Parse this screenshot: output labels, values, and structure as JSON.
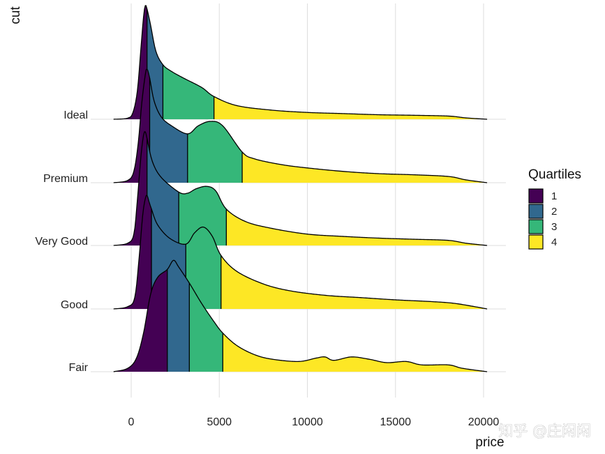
{
  "chart_data": {
    "type": "ridgeline",
    "title": "",
    "xlabel": "price",
    "ylabel": "cut",
    "xlim": [
      -1200,
      21500
    ],
    "x_ticks": [
      0,
      5000,
      10000,
      15000,
      20000
    ],
    "x_tick_labels": [
      "0",
      "5000",
      "10000",
      "15000",
      "20000"
    ],
    "grid": true,
    "categories": [
      "Fair",
      "Good",
      "Very Good",
      "Premium",
      "Ideal"
    ],
    "legend": {
      "title": "Quartiles",
      "position": "right",
      "entries": [
        {
          "label": "1",
          "color": "#440154"
        },
        {
          "label": "2",
          "color": "#31688E"
        },
        {
          "label": "3",
          "color": "#35B779"
        },
        {
          "label": "4",
          "color": "#FDE725"
        }
      ]
    },
    "series": [
      {
        "name": "Ideal",
        "quartile_breaks": [
          900,
          1800,
          4700
        ],
        "density": [
          [
            -1000,
            0
          ],
          [
            -200,
            0.01
          ],
          [
            100,
            0.06
          ],
          [
            350,
            0.25
          ],
          [
            550,
            0.62
          ],
          [
            700,
            0.9
          ],
          [
            800,
            1.0
          ],
          [
            900,
            0.97
          ],
          [
            1100,
            0.83
          ],
          [
            1400,
            0.6
          ],
          [
            1800,
            0.48
          ],
          [
            2300,
            0.42
          ],
          [
            3000,
            0.36
          ],
          [
            4000,
            0.28
          ],
          [
            4700,
            0.2
          ],
          [
            6000,
            0.12
          ],
          [
            8000,
            0.08
          ],
          [
            10000,
            0.06
          ],
          [
            12000,
            0.05
          ],
          [
            14000,
            0.04
          ],
          [
            16000,
            0.035
          ],
          [
            18000,
            0.028
          ],
          [
            19000,
            0.012
          ],
          [
            20200,
            0
          ]
        ]
      },
      {
        "name": "Premium",
        "quartile_breaks": [
          1050,
          3200,
          6300
        ],
        "density": [
          [
            -1000,
            0
          ],
          [
            -200,
            0.02
          ],
          [
            150,
            0.1
          ],
          [
            400,
            0.35
          ],
          [
            600,
            0.7
          ],
          [
            800,
            0.95
          ],
          [
            900,
            1.0
          ],
          [
            1050,
            0.92
          ],
          [
            1300,
            0.72
          ],
          [
            1700,
            0.58
          ],
          [
            2300,
            0.5
          ],
          [
            3200,
            0.43
          ],
          [
            3800,
            0.5
          ],
          [
            4500,
            0.54
          ],
          [
            5200,
            0.5
          ],
          [
            6300,
            0.27
          ],
          [
            7000,
            0.21
          ],
          [
            8500,
            0.16
          ],
          [
            10000,
            0.13
          ],
          [
            12000,
            0.1
          ],
          [
            14000,
            0.08
          ],
          [
            16000,
            0.07
          ],
          [
            18000,
            0.055
          ],
          [
            19000,
            0.025
          ],
          [
            20200,
            0
          ]
        ]
      },
      {
        "name": "Very Good",
        "quartile_breaks": [
          900,
          2700,
          5400
        ],
        "density": [
          [
            -1000,
            0
          ],
          [
            -200,
            0.02
          ],
          [
            150,
            0.1
          ],
          [
            350,
            0.4
          ],
          [
            550,
            0.78
          ],
          [
            700,
            0.97
          ],
          [
            800,
            1.0
          ],
          [
            900,
            0.94
          ],
          [
            1200,
            0.74
          ],
          [
            1700,
            0.6
          ],
          [
            2700,
            0.47
          ],
          [
            3200,
            0.46
          ],
          [
            3700,
            0.5
          ],
          [
            4300,
            0.52
          ],
          [
            4800,
            0.48
          ],
          [
            5400,
            0.32
          ],
          [
            6500,
            0.21
          ],
          [
            8000,
            0.15
          ],
          [
            10000,
            0.1
          ],
          [
            12000,
            0.08
          ],
          [
            14000,
            0.065
          ],
          [
            16000,
            0.055
          ],
          [
            18000,
            0.045
          ],
          [
            19000,
            0.02
          ],
          [
            20200,
            0
          ]
        ]
      },
      {
        "name": "Good",
        "quartile_breaks": [
          1150,
          3100,
          5100
        ],
        "density": [
          [
            -1000,
            0
          ],
          [
            -200,
            0.02
          ],
          [
            200,
            0.1
          ],
          [
            450,
            0.45
          ],
          [
            650,
            0.82
          ],
          [
            800,
            0.97
          ],
          [
            900,
            1.0
          ],
          [
            1000,
            0.95
          ],
          [
            1150,
            0.88
          ],
          [
            1500,
            0.74
          ],
          [
            2200,
            0.62
          ],
          [
            3100,
            0.57
          ],
          [
            3600,
            0.67
          ],
          [
            4100,
            0.72
          ],
          [
            4600,
            0.64
          ],
          [
            5100,
            0.47
          ],
          [
            6000,
            0.33
          ],
          [
            7500,
            0.22
          ],
          [
            9000,
            0.16
          ],
          [
            11000,
            0.12
          ],
          [
            13000,
            0.1
          ],
          [
            15000,
            0.08
          ],
          [
            17000,
            0.065
          ],
          [
            18300,
            0.05
          ],
          [
            19500,
            0.02
          ],
          [
            20200,
            0
          ]
        ]
      },
      {
        "name": "Fair",
        "quartile_breaks": [
          2050,
          3300,
          5200
        ],
        "density": [
          [
            -1000,
            0
          ],
          [
            -200,
            0.03
          ],
          [
            300,
            0.12
          ],
          [
            700,
            0.34
          ],
          [
            1100,
            0.68
          ],
          [
            1500,
            0.83
          ],
          [
            2050,
            0.9
          ],
          [
            2400,
            0.98
          ],
          [
            2700,
            0.92
          ],
          [
            3300,
            0.78
          ],
          [
            4000,
            0.6
          ],
          [
            4700,
            0.44
          ],
          [
            5200,
            0.34
          ],
          [
            6000,
            0.23
          ],
          [
            7000,
            0.15
          ],
          [
            8000,
            0.11
          ],
          [
            9500,
            0.09
          ],
          [
            10500,
            0.12
          ],
          [
            11000,
            0.13
          ],
          [
            11500,
            0.1
          ],
          [
            12500,
            0.13
          ],
          [
            13500,
            0.11
          ],
          [
            14500,
            0.08
          ],
          [
            15600,
            0.09
          ],
          [
            16500,
            0.06
          ],
          [
            18000,
            0.06
          ],
          [
            18800,
            0.03
          ],
          [
            20200,
            0
          ]
        ]
      }
    ]
  },
  "watermark": "知乎 @庄闲闲"
}
